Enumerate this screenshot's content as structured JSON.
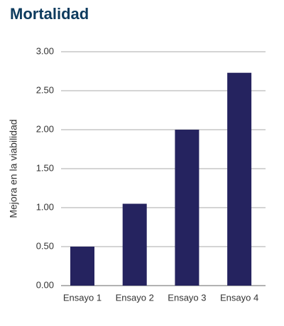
{
  "chart_data": {
    "type": "bar",
    "title": "Mortalidad",
    "y_label": "Mejora en la viabilidad",
    "categories": [
      "Ensayo 1",
      "Ensayo 2",
      "Ensayo 3",
      "Ensayo 4"
    ],
    "values": [
      0.5,
      1.05,
      2.0,
      2.73
    ],
    "color": "#25235f",
    "ylim": [
      0,
      3
    ],
    "yticks": [
      {
        "value": 0,
        "label": "0.00"
      },
      {
        "value": 0.5,
        "label": "0.50"
      },
      {
        "value": 1,
        "label": "1.00"
      },
      {
        "value": 1.5,
        "label": "1.50"
      },
      {
        "value": 2,
        "label": "2.00"
      },
      {
        "value": 2.5,
        "label": "2.50"
      },
      {
        "value": 3,
        "label": "3.00"
      }
    ],
    "grid": true
  }
}
